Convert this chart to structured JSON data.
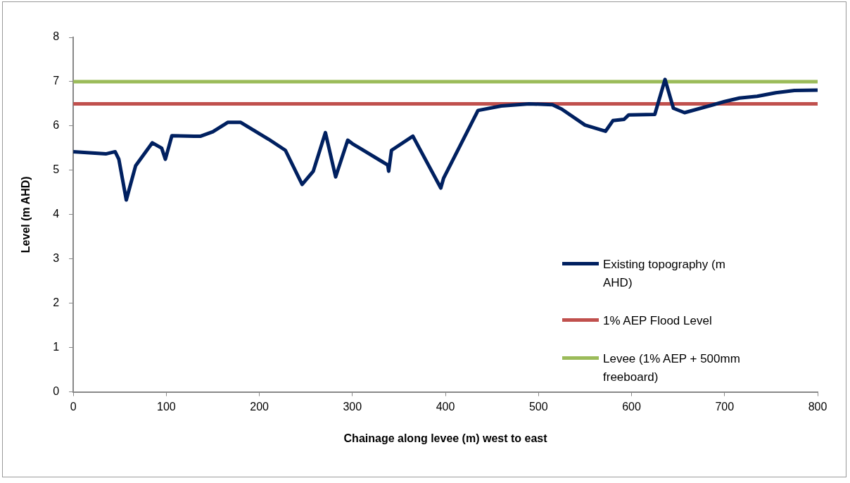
{
  "chart_data": {
    "type": "line",
    "xlabel": "Chainage along levee (m) west to east",
    "ylabel": "Level (m AHD)",
    "xlim": [
      0,
      800
    ],
    "xticks": [
      0,
      100,
      200,
      300,
      400,
      500,
      600,
      700,
      800
    ],
    "ylim": [
      0,
      8
    ],
    "yticks": [
      0,
      1,
      2,
      3,
      4,
      5,
      6,
      7,
      8
    ],
    "grid": false,
    "legend": "right",
    "marker": "none",
    "series": [
      {
        "name": "Existing topography (m AHD)",
        "color": "#002060",
        "x": [
          0,
          35,
          45,
          49,
          57,
          67,
          85,
          95,
          99,
          106,
          130,
          137,
          150,
          166,
          180,
          210,
          228,
          246,
          258,
          271,
          282,
          295,
          300,
          330,
          338,
          339,
          342,
          365,
          395,
          398,
          435,
          460,
          490,
          515,
          525,
          550,
          572,
          580,
          592,
          597,
          625,
          636,
          645,
          657,
          700,
          716,
          735,
          755,
          775,
          800
        ],
        "values": [
          5.42,
          5.37,
          5.42,
          5.25,
          4.33,
          5.1,
          5.62,
          5.5,
          5.25,
          5.78,
          5.77,
          5.77,
          5.87,
          6.08,
          6.08,
          5.7,
          5.45,
          4.68,
          4.98,
          5.85,
          4.85,
          5.68,
          5.6,
          5.22,
          5.12,
          4.98,
          5.45,
          5.77,
          4.6,
          4.82,
          6.35,
          6.45,
          6.5,
          6.48,
          6.38,
          6.02,
          5.88,
          6.12,
          6.15,
          6.25,
          6.26,
          7.05,
          6.4,
          6.3,
          6.55,
          6.63,
          6.67,
          6.75,
          6.8,
          6.81
        ]
      },
      {
        "name": "1% AEP Flood Level",
        "color": "#c0504d",
        "x": [
          0,
          800
        ],
        "values": [
          6.5,
          6.5
        ]
      },
      {
        "name": "Levee (1% AEP + 500mm freeboard)",
        "color": "#9bbb59",
        "x": [
          0,
          800
        ],
        "values": [
          7,
          7
        ]
      }
    ]
  }
}
